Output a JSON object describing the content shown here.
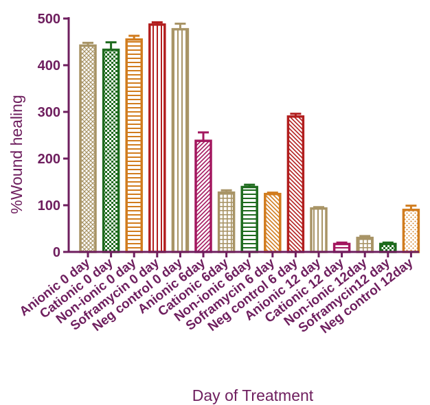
{
  "chart_data": {
    "type": "bar",
    "title": "",
    "xlabel": "Day of Treatment",
    "ylabel": "%Wound healing",
    "ylim": [
      0,
      500
    ],
    "yticks": [
      0,
      100,
      200,
      300,
      400,
      500
    ],
    "grid": false,
    "legend": "none",
    "axis_color": "#6e1e5e",
    "categories": [
      "Anionic 0 day",
      "Cationic 0 day",
      "Non-ionic 0 day",
      "Soframycin 0 day",
      "Neg control 0 day",
      "Anionic 6day",
      "Cationic 6day",
      "Non-ionic 6day",
      "Soframycin 6 day",
      "Neg control 6 day",
      "Anionic 12 day",
      "Cationic 12 day",
      "Non-ionic 12day",
      "Soframycin12 day",
      "Neg control 12day"
    ],
    "values": [
      442,
      433,
      455,
      487,
      477,
      238,
      127,
      139,
      124,
      290,
      93,
      17,
      30,
      17,
      90
    ],
    "errors": [
      6,
      16,
      8,
      5,
      12,
      18,
      5,
      5,
      3,
      6,
      3,
      3,
      4,
      3,
      9
    ],
    "bar_colors": [
      "#a89466",
      "#1e6b1e",
      "#d17c1e",
      "#b21e1e",
      "#a89466",
      "#a3175f",
      "#a89466",
      "#1e6b1e",
      "#d17c1e",
      "#b21e1e",
      "#a89466",
      "#a3175f",
      "#a89466",
      "#1e6b1e",
      "#d17c1e"
    ],
    "bar_patterns": [
      "cross",
      "checker",
      "hlines",
      "vlines",
      "vlines",
      "diag-right",
      "grid",
      "hlines",
      "diag-left",
      "diag-left",
      "vlines",
      "hlines",
      "grid",
      "checker",
      "dots"
    ]
  }
}
